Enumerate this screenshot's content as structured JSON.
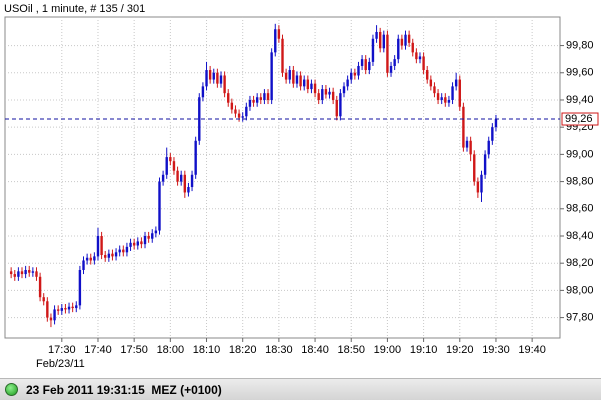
{
  "chart_data": {
    "type": "candlestick",
    "title": "USOil , 1 minute, # 135 / 301",
    "x": [
      1036,
      1037,
      1038,
      1039,
      1040,
      1041,
      1042,
      1043,
      1044,
      1045,
      1046,
      1047,
      1048,
      1049,
      1050,
      1051,
      1052,
      1053,
      1054,
      1055,
      1056,
      1057,
      1058,
      1059,
      1060,
      1061,
      1062,
      1063,
      1064,
      1065,
      1066,
      1067,
      1068,
      1069,
      1070,
      1071,
      1072,
      1073,
      1074,
      1075,
      1076,
      1077,
      1078,
      1079,
      1080,
      1081,
      1082,
      1083,
      1084,
      1085,
      1086,
      1087,
      1088,
      1089,
      1090,
      1091,
      1092,
      1093,
      1094,
      1095,
      1096,
      1097,
      1098,
      1099,
      1100,
      1101,
      1102,
      1103,
      1104,
      1105,
      1106,
      1107,
      1108,
      1109,
      1110,
      1111,
      1112,
      1113,
      1114,
      1115,
      1116,
      1117,
      1118,
      1119,
      1120,
      1121,
      1122,
      1123,
      1124,
      1125,
      1126,
      1127,
      1128,
      1129,
      1130,
      1131,
      1132,
      1133,
      1134,
      1135,
      1136,
      1137,
      1138,
      1139,
      1140,
      1141,
      1142,
      1143,
      1144,
      1145,
      1146,
      1147,
      1148,
      1149,
      1150,
      1151,
      1152,
      1153,
      1154,
      1155,
      1156,
      1157,
      1158,
      1159,
      1160,
      1161,
      1162,
      1163,
      1164,
      1165,
      1166,
      1167,
      1168,
      1169,
      1170
    ],
    "open": [
      98.14,
      98.12,
      98.1,
      98.14,
      98.12,
      98.15,
      98.13,
      98.14,
      98.1,
      97.95,
      97.92,
      97.8,
      97.78,
      97.86,
      97.85,
      97.87,
      97.86,
      97.88,
      97.87,
      97.89,
      98.15,
      98.22,
      98.24,
      98.22,
      98.25,
      98.4,
      98.26,
      98.24,
      98.27,
      98.25,
      98.28,
      98.3,
      98.28,
      98.32,
      98.35,
      98.33,
      98.36,
      98.34,
      98.4,
      98.38,
      98.42,
      98.44,
      98.8,
      98.85,
      98.98,
      98.95,
      98.88,
      98.8,
      98.85,
      98.72,
      98.76,
      98.85,
      99.1,
      99.42,
      99.5,
      99.62,
      99.55,
      99.6,
      99.52,
      99.58,
      99.45,
      99.38,
      99.33,
      99.3,
      99.27,
      99.28,
      99.35,
      99.4,
      99.38,
      99.42,
      99.4,
      99.45,
      99.4,
      99.75,
      99.92,
      99.85,
      99.6,
      99.55,
      99.62,
      99.52,
      99.58,
      99.5,
      99.55,
      99.48,
      99.52,
      99.45,
      99.4,
      99.48,
      99.44,
      99.46,
      99.4,
      99.28,
      99.45,
      99.5,
      99.55,
      99.6,
      99.58,
      99.65,
      99.7,
      99.62,
      99.68,
      99.85,
      99.9,
      99.78,
      99.88,
      99.6,
      99.65,
      99.7,
      99.85,
      99.8,
      99.88,
      99.82,
      99.75,
      99.7,
      99.72,
      99.62,
      99.55,
      99.5,
      99.45,
      99.4,
      99.42,
      99.38,
      99.4,
      99.5,
      99.55,
      99.35,
      99.05,
      99.1,
      99.0,
      98.8,
      98.72,
      98.85,
      99.0,
      99.1,
      99.2
    ],
    "high": [
      98.17,
      98.15,
      98.17,
      98.17,
      98.18,
      98.18,
      98.17,
      98.17,
      98.13,
      97.98,
      97.95,
      97.83,
      97.89,
      97.89,
      97.9,
      97.9,
      97.91,
      97.91,
      97.92,
      98.18,
      98.25,
      98.27,
      98.27,
      98.28,
      98.46,
      98.43,
      98.29,
      98.3,
      98.3,
      98.31,
      98.33,
      98.33,
      98.35,
      98.38,
      98.38,
      98.39,
      98.39,
      98.43,
      98.43,
      98.45,
      98.47,
      98.83,
      98.88,
      99.05,
      99.01,
      98.98,
      98.91,
      98.88,
      98.88,
      98.79,
      98.88,
      99.13,
      99.45,
      99.53,
      99.68,
      99.65,
      99.63,
      99.63,
      99.61,
      99.61,
      99.48,
      99.41,
      99.36,
      99.33,
      99.31,
      99.38,
      99.43,
      99.43,
      99.45,
      99.45,
      99.48,
      99.48,
      99.78,
      99.96,
      99.95,
      99.88,
      99.63,
      99.65,
      99.65,
      99.61,
      99.61,
      99.58,
      99.58,
      99.55,
      99.55,
      99.48,
      99.51,
      99.51,
      99.49,
      99.49,
      99.43,
      99.48,
      99.53,
      99.58,
      99.63,
      99.63,
      99.68,
      99.73,
      99.73,
      99.71,
      99.88,
      99.95,
      99.93,
      99.91,
      99.91,
      99.68,
      99.73,
      99.88,
      99.88,
      99.91,
      99.91,
      99.85,
      99.78,
      99.75,
      99.75,
      99.65,
      99.58,
      99.53,
      99.48,
      99.45,
      99.45,
      99.43,
      99.53,
      99.6,
      99.58,
      99.38,
      99.13,
      99.13,
      99.03,
      98.83,
      98.88,
      99.03,
      99.13,
      99.23,
      99.29
    ],
    "low": [
      98.09,
      98.07,
      98.07,
      98.09,
      98.09,
      98.1,
      98.1,
      98.07,
      97.92,
      97.89,
      97.77,
      97.73,
      97.75,
      97.82,
      97.82,
      97.83,
      97.83,
      97.84,
      97.84,
      97.86,
      98.12,
      98.19,
      98.19,
      98.19,
      98.22,
      98.23,
      98.21,
      98.21,
      98.22,
      98.22,
      98.25,
      98.25,
      98.25,
      98.29,
      98.3,
      98.3,
      98.31,
      98.31,
      98.35,
      98.35,
      98.39,
      98.41,
      98.77,
      98.82,
      98.92,
      98.85,
      98.77,
      98.77,
      98.68,
      98.69,
      98.73,
      98.82,
      99.07,
      99.39,
      99.47,
      99.52,
      99.52,
      99.49,
      99.49,
      99.42,
      99.35,
      99.3,
      99.27,
      99.24,
      99.24,
      99.25,
      99.32,
      99.35,
      99.35,
      99.37,
      99.37,
      99.37,
      99.37,
      99.72,
      99.82,
      99.57,
      99.52,
      99.52,
      99.49,
      99.49,
      99.47,
      99.47,
      99.45,
      99.45,
      99.42,
      99.37,
      99.37,
      99.41,
      99.41,
      99.37,
      99.25,
      99.25,
      99.42,
      99.47,
      99.52,
      99.55,
      99.55,
      99.62,
      99.59,
      99.59,
      99.65,
      99.82,
      99.75,
      99.75,
      99.57,
      99.57,
      99.62,
      99.67,
      99.77,
      99.77,
      99.79,
      99.72,
      99.67,
      99.67,
      99.59,
      99.52,
      99.47,
      99.42,
      99.37,
      99.37,
      99.35,
      99.35,
      99.37,
      99.47,
      99.32,
      99.02,
      99.02,
      98.95,
      98.77,
      98.68,
      98.65,
      98.82,
      98.97,
      99.07,
      99.17
    ],
    "close": [
      98.12,
      98.1,
      98.14,
      98.12,
      98.15,
      98.13,
      98.14,
      98.1,
      97.95,
      97.92,
      97.8,
      97.78,
      97.86,
      97.85,
      97.87,
      97.86,
      97.88,
      97.87,
      97.89,
      98.15,
      98.22,
      98.24,
      98.22,
      98.25,
      98.4,
      98.26,
      98.24,
      98.27,
      98.25,
      98.28,
      98.3,
      98.28,
      98.32,
      98.35,
      98.33,
      98.36,
      98.34,
      98.4,
      98.38,
      98.42,
      98.44,
      98.8,
      98.85,
      98.98,
      98.95,
      98.88,
      98.8,
      98.85,
      98.72,
      98.76,
      98.85,
      99.1,
      99.42,
      99.5,
      99.62,
      99.55,
      99.6,
      99.52,
      99.58,
      99.45,
      99.38,
      99.33,
      99.3,
      99.27,
      99.28,
      99.35,
      99.4,
      99.38,
      99.42,
      99.4,
      99.45,
      99.4,
      99.75,
      99.92,
      99.85,
      99.6,
      99.55,
      99.62,
      99.52,
      99.58,
      99.5,
      99.55,
      99.48,
      99.52,
      99.45,
      99.4,
      99.48,
      99.44,
      99.46,
      99.4,
      99.28,
      99.45,
      99.5,
      99.55,
      99.6,
      99.58,
      99.65,
      99.7,
      99.62,
      99.68,
      99.85,
      99.9,
      99.78,
      99.88,
      99.6,
      99.65,
      99.7,
      99.85,
      99.8,
      99.88,
      99.82,
      99.75,
      99.7,
      99.72,
      99.62,
      99.55,
      99.5,
      99.45,
      99.4,
      99.42,
      99.38,
      99.4,
      99.5,
      99.55,
      99.35,
      99.05,
      99.1,
      99.0,
      98.8,
      98.72,
      98.85,
      99.0,
      99.1,
      99.2,
      99.26
    ],
    "up_color": "#1010c8",
    "down_color": "#d01818",
    "xlim": [
      1034.3,
      1187.7
    ],
    "xticks": [
      {
        "value": 1050,
        "label": "17:30"
      },
      {
        "value": 1060,
        "label": "17:40"
      },
      {
        "value": 1070,
        "label": "17:50"
      },
      {
        "value": 1080,
        "label": "18:00"
      },
      {
        "value": 1090,
        "label": "18:10"
      },
      {
        "value": 1100,
        "label": "18:20"
      },
      {
        "value": 1110,
        "label": "18:30"
      },
      {
        "value": 1120,
        "label": "18:40"
      },
      {
        "value": 1130,
        "label": "18:50"
      },
      {
        "value": 1140,
        "label": "19:00"
      },
      {
        "value": 1150,
        "label": "19:10"
      },
      {
        "value": 1160,
        "label": "19:20"
      },
      {
        "value": 1170,
        "label": "19:30"
      },
      {
        "value": 1180,
        "label": "19:40"
      }
    ],
    "date_label": "Feb/23/11",
    "ylim": [
      97.65,
      100.01
    ],
    "yticks": [
      {
        "value": 97.8,
        "label": "97,80"
      },
      {
        "value": 98.0,
        "label": "98,00"
      },
      {
        "value": 98.2,
        "label": "98,20"
      },
      {
        "value": 98.4,
        "label": "98,40"
      },
      {
        "value": 98.6,
        "label": "98,60"
      },
      {
        "value": 98.8,
        "label": "98,80"
      },
      {
        "value": 99.0,
        "label": "99,00"
      },
      {
        "value": 99.2,
        "label": "99,20"
      },
      {
        "value": 99.4,
        "label": "99,40"
      },
      {
        "value": 99.6,
        "label": "99,60"
      },
      {
        "value": 99.8,
        "label": "99,80"
      }
    ],
    "grid": true,
    "last_price": {
      "value": 99.26,
      "label": "99,26",
      "color": "#1010a0"
    }
  },
  "status_bar": {
    "text": "23 Feb 2011 19:31:15  MEZ (+0100)"
  }
}
